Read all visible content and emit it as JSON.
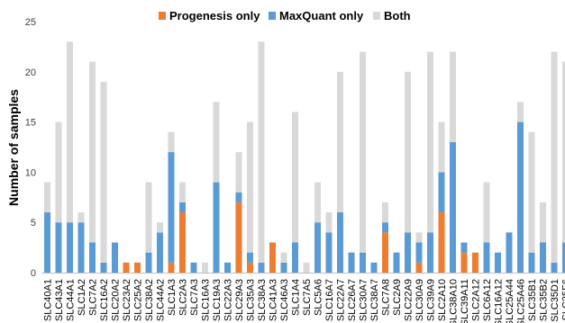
{
  "chart_data": {
    "type": "bar",
    "stacked": true,
    "ylabel": "Number of samples",
    "ylim": [
      0,
      25
    ],
    "yticks": [
      0,
      5,
      10,
      15,
      20,
      25
    ],
    "grid": false,
    "legend_position": "top",
    "categories": [
      "SLC40A1",
      "SLC43A1",
      "SLC44A1",
      "SLC1A2",
      "SLC7A2",
      "SLC16A2",
      "SLC20A2",
      "SLC23A2",
      "SLC25A2",
      "SLC38A2",
      "SLC44A2",
      "SLC1A3",
      "SLC2A3",
      "SLC7A3",
      "SLC16A3",
      "SLC19A3",
      "SLC22A3",
      "SLC29A3",
      "SLC35A3",
      "SLC38A3",
      "SLC41A3",
      "SLC46A3",
      "SLC1A4",
      "SLC7A5",
      "SLC5A6",
      "SLC16A7",
      "SLC22A7",
      "SLC26A7",
      "SLC30A7",
      "SLC38A7",
      "SLC7A8",
      "SLC2A9",
      "SLC22A9",
      "SLC30A9",
      "SLC39A9",
      "SLC2A10",
      "SLC38A10",
      "SLC39A11",
      "SLC2A12",
      "SLC6A12",
      "SLC16A12",
      "SLC25A44",
      "SLC25A46",
      "SLC35B1",
      "SLC35B2",
      "SLC35D1",
      "SLC35F6",
      "SLCO2B1"
    ],
    "series": [
      {
        "name": "Progenesis only",
        "color": "#ED7D31",
        "values": [
          0,
          0,
          0,
          0,
          0,
          0,
          0,
          1,
          1,
          0,
          0,
          1,
          6,
          0,
          0,
          0,
          0,
          7,
          1,
          0,
          3,
          0,
          0,
          0,
          0,
          0,
          0,
          0,
          0,
          0,
          4,
          0,
          0,
          1,
          0,
          6,
          0,
          2,
          2,
          0,
          0,
          0,
          0,
          0,
          0,
          0,
          0,
          0
        ]
      },
      {
        "name": "MaxQuant only",
        "color": "#5B9BD5",
        "values": [
          6,
          5,
          5,
          5,
          3,
          1,
          3,
          0,
          0,
          2,
          4,
          11,
          1,
          1,
          0,
          9,
          1,
          1,
          1,
          1,
          0,
          1,
          3,
          0,
          5,
          4,
          6,
          2,
          2,
          1,
          1,
          2,
          4,
          2,
          4,
          4,
          13,
          1,
          0,
          3,
          2,
          4,
          15,
          2,
          3,
          1,
          3,
          2
        ]
      },
      {
        "name": "Both",
        "color": "#D9D9D9",
        "values": [
          3,
          10,
          18,
          1,
          18,
          18,
          0,
          0,
          0,
          7,
          1,
          2,
          2,
          0,
          1,
          8,
          0,
          4,
          13,
          22,
          0,
          1,
          13,
          1,
          4,
          2,
          14,
          0,
          20,
          0,
          2,
          0,
          16,
          1,
          18,
          5,
          9,
          0,
          0,
          6,
          0,
          0,
          2,
          12,
          4,
          21,
          18,
          20
        ]
      }
    ]
  }
}
